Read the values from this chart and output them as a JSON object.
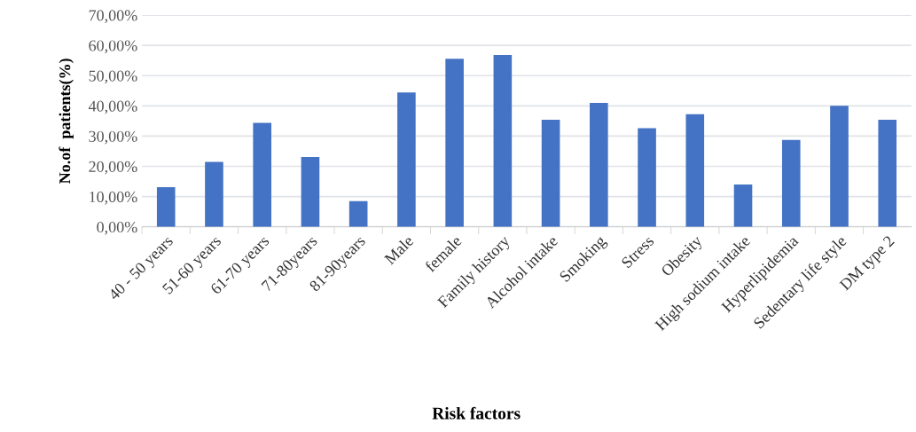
{
  "chart_data": {
    "type": "bar",
    "xlabel": "Risk factors",
    "ylabel": "No.of  patients(%)",
    "categories": [
      "40 - 50 years",
      "51-60 years",
      "61-70 years",
      "71-80years",
      "81-90years",
      "Male",
      "female",
      "Family history",
      "Alcohol intake",
      "Smoking",
      "Stress",
      "Obesity",
      "High sodium intake",
      "Hyperlipidemia",
      "Sedentary life style",
      "DM type 2"
    ],
    "values": [
      13.1,
      21.5,
      34.4,
      23.1,
      8.5,
      44.4,
      55.6,
      56.8,
      35.4,
      41.0,
      32.6,
      37.2,
      14.0,
      28.7,
      40.0,
      35.4
    ],
    "color": "#4472c4",
    "ylim": [
      0,
      70
    ],
    "yticks": [
      {
        "value": 0,
        "label": "0,00%"
      },
      {
        "value": 10,
        "label": "10,00%"
      },
      {
        "value": 20,
        "label": "20,00%"
      },
      {
        "value": 30,
        "label": "30,00%"
      },
      {
        "value": 40,
        "label": "40,00%"
      },
      {
        "value": 50,
        "label": "50,00%"
      },
      {
        "value": 60,
        "label": "60,00%"
      },
      {
        "value": 70,
        "label": "70,00%"
      }
    ],
    "grid": "y"
  }
}
